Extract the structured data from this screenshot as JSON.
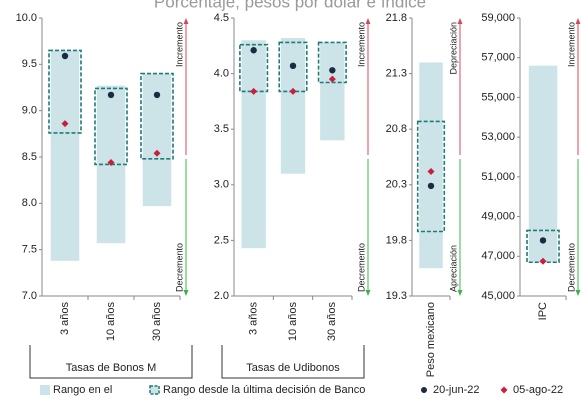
{
  "title": "Porcentaje, pesos por dólar e índice",
  "legend": [
    {
      "name": "Rango en el",
      "color": "#cce4e7",
      "marker": "range"
    },
    {
      "name": "Rango desde la última decisión de Banco",
      "color": "#1f7a78",
      "marker": "box"
    },
    {
      "name": "20-jun-22",
      "color": "#1b2b44",
      "marker": "dot"
    },
    {
      "name": "05-ago-22",
      "color": "#c8203c",
      "marker": "diamond"
    }
  ],
  "chart_data": [
    {
      "type": "range",
      "group_label": "Tasas de Bonos M",
      "categories": [
        "3 años",
        "10 años",
        "30 años"
      ],
      "ylim": [
        7.0,
        10.0
      ],
      "yticks": [
        {
          "value": 7.0,
          "label": "7.0"
        },
        {
          "value": 7.5,
          "label": "7.5"
        },
        {
          "value": 8.0,
          "label": "8.0"
        },
        {
          "value": 8.5,
          "label": "8.5"
        },
        {
          "value": 9.0,
          "label": "9.0"
        },
        {
          "value": 9.5,
          "label": "9.5"
        },
        {
          "value": 10.0,
          "label": "10.0"
        }
      ],
      "annotations": {
        "up": "Incremento",
        "down": "Decremento"
      },
      "series": [
        {
          "values": [
            [
              7.38,
              9.65
            ],
            [
              7.57,
              9.27
            ],
            [
              7.97,
              9.4
            ]
          ]
        },
        {
          "values": [
            [
              8.76,
              9.65
            ],
            [
              8.42,
              9.24
            ],
            [
              8.48,
              9.4
            ]
          ]
        },
        {
          "values": [
            9.59,
            9.17,
            9.17
          ]
        },
        {
          "values": [
            8.86,
            8.44,
            8.54
          ]
        }
      ]
    },
    {
      "type": "range",
      "group_label": "Tasas de Udibonos",
      "categories": [
        "3 años",
        "10 años",
        "30 años"
      ],
      "ylim": [
        2.0,
        4.5
      ],
      "yticks": [
        {
          "value": 2.0,
          "label": "2.0"
        },
        2.5,
        {
          "value": 3.0,
          "label": "3.0"
        },
        3.5,
        {
          "value": 4.0,
          "label": "4.0"
        },
        4.5
      ],
      "annotations": {
        "up": "Incremento",
        "down": "Decremento"
      },
      "series": [
        {
          "values": [
            [
              2.43,
              4.3
            ],
            [
              3.1,
              4.32
            ],
            [
              3.4,
              4.28
            ]
          ]
        },
        {
          "values": [
            [
              3.84,
              4.26
            ],
            [
              3.84,
              4.28
            ],
            [
              3.92,
              4.28
            ]
          ]
        },
        {
          "values": [
            4.21,
            4.07,
            4.03
          ]
        },
        {
          "values": [
            3.84,
            3.84,
            3.95
          ]
        }
      ]
    },
    {
      "type": "range",
      "categories": [
        "Peso mexicano"
      ],
      "ylim": [
        19.3,
        21.8
      ],
      "yticks": [
        19.3,
        19.8,
        20.3,
        20.8,
        21.3,
        21.8
      ],
      "annotations": {
        "up": "Depreciación",
        "down": "Apreciación"
      },
      "series": [
        {
          "values": [
            [
              19.55,
              21.4
            ]
          ]
        },
        {
          "values": [
            [
              19.88,
              20.87
            ]
          ]
        },
        {
          "values": [
            20.29
          ]
        },
        {
          "values": [
            20.42
          ]
        }
      ]
    },
    {
      "type": "range",
      "categories": [
        "IPC"
      ],
      "ylim": [
        45000,
        59000
      ],
      "yticks": [
        {
          "value": 45000,
          "label": "45,000"
        },
        {
          "value": 47000,
          "label": "47,000"
        },
        {
          "value": 49000,
          "label": "49,000"
        },
        {
          "value": 51000,
          "label": "51,000"
        },
        {
          "value": 53000,
          "label": "53,000"
        },
        {
          "value": 55000,
          "label": "55,000"
        },
        {
          "value": 57000,
          "label": "57,000"
        },
        {
          "value": 59000,
          "label": "59,000"
        }
      ],
      "annotations": {
        "up": "Incremento",
        "down": "Decremento"
      },
      "series": [
        {
          "values": [
            [
              46700,
              56600
            ]
          ]
        },
        {
          "values": [
            [
              46700,
              48300
            ]
          ]
        },
        {
          "values": [
            47800
          ]
        },
        {
          "values": [
            46750
          ]
        }
      ]
    }
  ]
}
